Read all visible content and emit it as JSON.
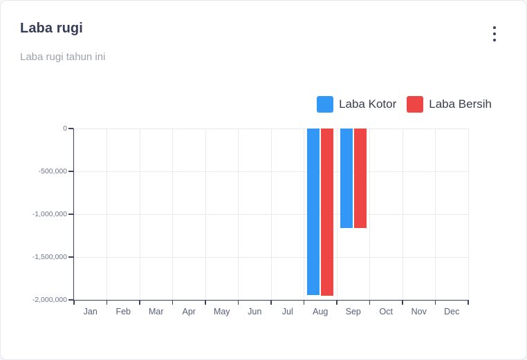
{
  "header": {
    "title": "Laba rugi",
    "subtitle": "Laba rugi tahun ini",
    "menu_icon": "kebab-menu-icon"
  },
  "chart_data": {
    "type": "bar",
    "title": "Laba rugi",
    "xlabel": "",
    "ylabel": "",
    "categories": [
      "Jan",
      "Feb",
      "Mar",
      "Apr",
      "May",
      "Jun",
      "Jul",
      "Aug",
      "Sep",
      "Oct",
      "Nov",
      "Dec"
    ],
    "series": [
      {
        "name": "Laba Kotor",
        "color": "#3398f5",
        "values": [
          0,
          0,
          0,
          0,
          0,
          0,
          0,
          -1940000,
          -1160000,
          0,
          0,
          0
        ]
      },
      {
        "name": "Laba Bersih",
        "color": "#ee4545",
        "values": [
          0,
          0,
          0,
          0,
          0,
          0,
          0,
          -1950000,
          -1165000,
          0,
          0,
          0
        ]
      }
    ],
    "ylim": [
      -2000000,
      0
    ],
    "ytick_step": 500000,
    "ytick_labels": [
      "0",
      "-500,000",
      "-1,000,000",
      "-1,500,000",
      "-2,000,000"
    ],
    "grid": true,
    "legend_position": "top-right"
  },
  "colors": {
    "accent_blue": "#3398f5",
    "accent_red": "#ee4545",
    "axis": "#3b4160",
    "gridline": "#e9e9ee",
    "title_text": "#353c55",
    "subtitle_text": "#9da1ad"
  }
}
